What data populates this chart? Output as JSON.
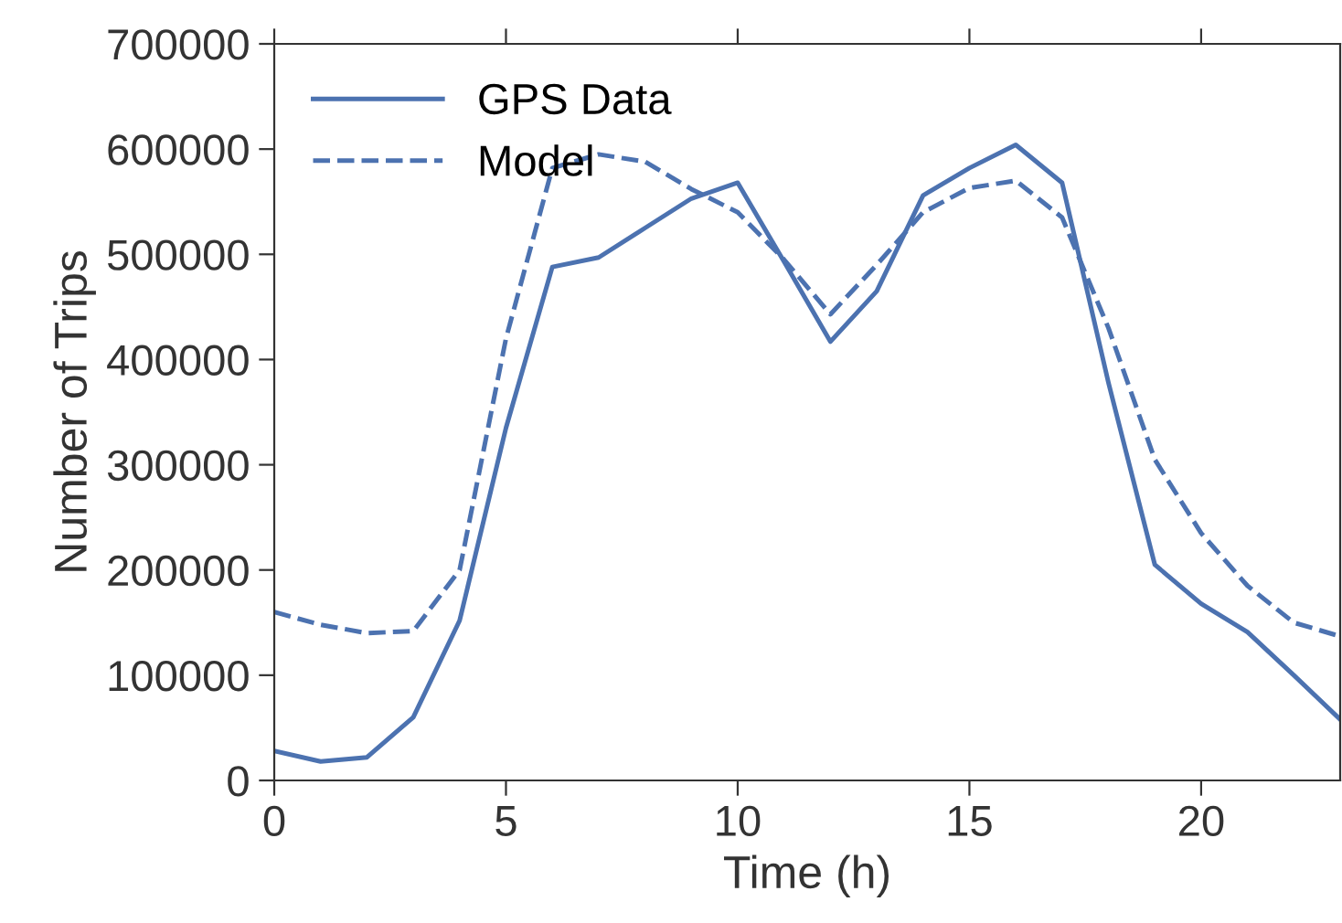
{
  "chart_data": {
    "type": "line",
    "xlabel": "Time (h)",
    "ylabel": "Number of Trips",
    "x": [
      0,
      1,
      2,
      3,
      4,
      5,
      6,
      7,
      8,
      9,
      10,
      11,
      12,
      13,
      14,
      15,
      16,
      17,
      18,
      19,
      20,
      21,
      22,
      23
    ],
    "series": [
      {
        "name": "GPS Data",
        "color": "#4c72b0",
        "line_style": "solid",
        "values": [
          28000,
          18000,
          22000,
          60000,
          152000,
          335000,
          488000,
          497000,
          525000,
          553000,
          568000,
          493000,
          417000,
          465000,
          556000,
          582000,
          604000,
          568000,
          378000,
          205000,
          168000,
          141000,
          100000,
          58000
        ]
      },
      {
        "name": "Model",
        "color": "#4c72b0",
        "line_style": "dashed",
        "values": [
          160000,
          148000,
          140000,
          142000,
          200000,
          420000,
          582000,
          595000,
          588000,
          562000,
          540000,
          495000,
          443000,
          490000,
          540000,
          563000,
          570000,
          535000,
          430000,
          305000,
          235000,
          185000,
          150000,
          137000
        ]
      }
    ],
    "xlim": [
      0,
      23
    ],
    "xticks": [
      0,
      5,
      10,
      15,
      20
    ],
    "ylim": [
      0,
      700000
    ],
    "yticks": [
      0,
      100000,
      200000,
      300000,
      400000,
      500000,
      600000,
      700000
    ],
    "grid": false,
    "legend": "top left"
  }
}
